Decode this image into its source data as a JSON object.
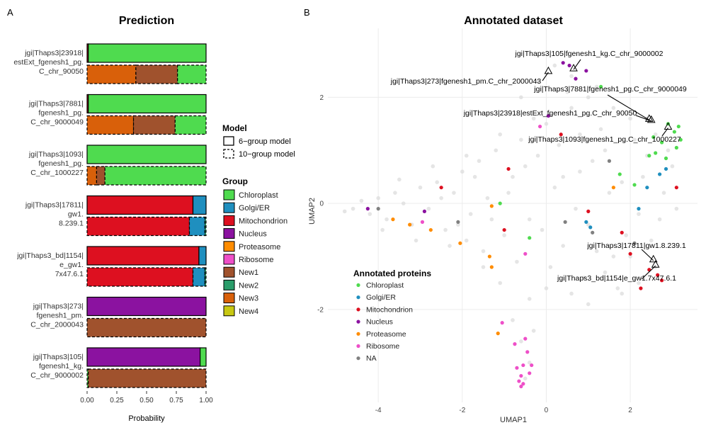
{
  "panels": {
    "a": "A",
    "b": "B"
  },
  "chart_data": [
    {
      "type": "bar",
      "orientation": "horizontal",
      "stacked": true,
      "title": "Prediction",
      "xlabel": "Probability",
      "ylabel": "",
      "xlim": [
        0,
        1
      ],
      "xticks": [
        "0.00",
        "0.25",
        "0.50",
        "0.75",
        "1.00"
      ],
      "xtick_values": [
        0,
        0.25,
        0.5,
        0.75,
        1
      ],
      "model_legend": {
        "title": "Model",
        "items": [
          "6−group model",
          "10−group model"
        ]
      },
      "group_legend": {
        "title": "Group",
        "items": [
          {
            "name": "Chloroplast",
            "color": "#4fdb4f"
          },
          {
            "name": "Golgi/ER",
            "color": "#1f8fbf"
          },
          {
            "name": "Mitochondrion",
            "color": "#dd1020"
          },
          {
            "name": "Nucleus",
            "color": "#8b12a0"
          },
          {
            "name": "Proteasome",
            "color": "#ff8c00"
          },
          {
            "name": "Ribosome",
            "color": "#ee4fc8"
          },
          {
            "name": "New1",
            "color": "#a0522d"
          },
          {
            "name": "New2",
            "color": "#2a9d6a"
          },
          {
            "name": "New3",
            "color": "#d9600a"
          },
          {
            "name": "New4",
            "color": "#c8c812"
          }
        ]
      },
      "proteins": [
        {
          "label": [
            "jgi|Thaps3|23918|",
            "estExt_fgenesh1_pg.",
            "C_chr_90050"
          ],
          "six": [
            {
              "group": "Mitochondrion",
              "value": 0.01
            },
            {
              "group": "Chloroplast",
              "value": 0.99
            }
          ],
          "ten": [
            {
              "group": "New3",
              "value": 0.41
            },
            {
              "group": "New1",
              "value": 0.35
            },
            {
              "group": "Chloroplast",
              "value": 0.24
            }
          ]
        },
        {
          "label": [
            "jgi|Thaps3|7881|",
            "fgenesh1_pg.",
            "C_chr_9000049"
          ],
          "six": [
            {
              "group": "Mitochondrion",
              "value": 0.01
            },
            {
              "group": "Chloroplast",
              "value": 0.99
            }
          ],
          "ten": [
            {
              "group": "New3",
              "value": 0.39
            },
            {
              "group": "New1",
              "value": 0.35
            },
            {
              "group": "Chloroplast",
              "value": 0.26
            }
          ]
        },
        {
          "label": [
            "jgi|Thaps3|1093|",
            "fgenesh1_pg.",
            "C_chr_1000227"
          ],
          "six": [
            {
              "group": "Chloroplast",
              "value": 1.0
            }
          ],
          "ten": [
            {
              "group": "New3",
              "value": 0.08
            },
            {
              "group": "New1",
              "value": 0.07
            },
            {
              "group": "Chloroplast",
              "value": 0.85
            }
          ]
        },
        {
          "label": [
            "jgi|Thaps3|17811|",
            "gw1.",
            "8.239.1"
          ],
          "six": [
            {
              "group": "Mitochondrion",
              "value": 0.89
            },
            {
              "group": "Golgi/ER",
              "value": 0.11
            }
          ],
          "ten": [
            {
              "group": "Mitochondrion",
              "value": 0.86
            },
            {
              "group": "Golgi/ER",
              "value": 0.13
            },
            {
              "group": "New2",
              "value": 0.01
            }
          ]
        },
        {
          "label": [
            "jgi|Thaps3_bd|1154|",
            "e_gw1.",
            "7x47.6.1"
          ],
          "six": [
            {
              "group": "Mitochondrion",
              "value": 0.94
            },
            {
              "group": "Golgi/ER",
              "value": 0.06
            }
          ],
          "ten": [
            {
              "group": "Mitochondrion",
              "value": 0.89
            },
            {
              "group": "Golgi/ER",
              "value": 0.1
            },
            {
              "group": "New2",
              "value": 0.01
            }
          ]
        },
        {
          "label": [
            "jgi|Thaps3|273|",
            "fgenesh1_pm.",
            "C_chr_2000043"
          ],
          "six": [
            {
              "group": "Nucleus",
              "value": 1.0
            }
          ],
          "ten": [
            {
              "group": "New1",
              "value": 1.0
            }
          ]
        },
        {
          "label": [
            "jgi|Thaps3|105|",
            "fgenesh1_kg.",
            "C_chr_9000002"
          ],
          "six": [
            {
              "group": "Nucleus",
              "value": 0.95
            },
            {
              "group": "Chloroplast",
              "value": 0.05
            }
          ],
          "ten": [
            {
              "group": "Chloroplast",
              "value": 0.01
            },
            {
              "group": "New1",
              "value": 0.99
            }
          ]
        }
      ]
    },
    {
      "type": "scatter",
      "title": "Annotated dataset",
      "xlabel": "UMAP1",
      "ylabel": "UMAP2",
      "xlim": [
        -5.2,
        3.6
      ],
      "ylim": [
        -3.75,
        3.3
      ],
      "xticks": [
        -4,
        -2,
        0,
        2
      ],
      "yticks": [
        -2,
        0,
        2
      ],
      "grid": true,
      "legend": {
        "title": "Annotated proteins",
        "placement": "bottom-left",
        "items": [
          {
            "name": "Chloroplast",
            "color": "#4fdb4f"
          },
          {
            "name": "Golgi/ER",
            "color": "#1f8fbf"
          },
          {
            "name": "Mitochondrion",
            "color": "#dd1020"
          },
          {
            "name": "Nucleus",
            "color": "#8b12a0"
          },
          {
            "name": "Proteasome",
            "color": "#ff8c00"
          },
          {
            "name": "Ribosome",
            "color": "#ee4fc8"
          },
          {
            "name": "NA",
            "color": "#808080"
          }
        ]
      },
      "background_color": "#dcdcdc",
      "background_points": [
        [
          -4.8,
          -0.15
        ],
        [
          -4.6,
          -0.1
        ],
        [
          -4.4,
          0.05
        ],
        [
          -4.2,
          -0.2
        ],
        [
          -4.0,
          0.1
        ],
        [
          -3.8,
          -0.3
        ],
        [
          -3.6,
          0.2
        ],
        [
          -3.4,
          0.0
        ],
        [
          -3.2,
          -0.4
        ],
        [
          -3.0,
          0.3
        ],
        [
          -2.8,
          -0.1
        ],
        [
          -2.6,
          0.4
        ],
        [
          -2.4,
          -0.5
        ],
        [
          -2.2,
          0.2
        ],
        [
          -2.0,
          0.6
        ],
        [
          -1.8,
          -0.2
        ],
        [
          -1.6,
          0.8
        ],
        [
          -1.4,
          0.1
        ],
        [
          -1.2,
          1.0
        ],
        [
          -1.0,
          -0.6
        ],
        [
          -0.8,
          0.5
        ],
        [
          -0.6,
          1.2
        ],
        [
          -0.4,
          -0.3
        ],
        [
          -0.2,
          0.9
        ],
        [
          0.0,
          1.5
        ],
        [
          0.2,
          0.3
        ],
        [
          0.4,
          -0.8
        ],
        [
          0.6,
          1.8
        ],
        [
          0.8,
          0.6
        ],
        [
          1.0,
          -0.4
        ],
        [
          1.2,
          2.2
        ],
        [
          1.4,
          1.0
        ],
        [
          1.6,
          -1.0
        ],
        [
          1.8,
          0.4
        ],
        [
          2.0,
          1.6
        ],
        [
          2.2,
          -0.2
        ],
        [
          2.4,
          0.9
        ],
        [
          2.6,
          -1.2
        ],
        [
          2.8,
          0.2
        ],
        [
          3.0,
          0.7
        ],
        [
          -3.9,
          -0.5
        ],
        [
          -3.5,
          0.45
        ],
        [
          -3.1,
          -0.7
        ],
        [
          -2.7,
          0.7
        ],
        [
          -2.3,
          -0.8
        ],
        [
          -1.9,
          0.9
        ],
        [
          -1.5,
          -0.9
        ],
        [
          -1.1,
          1.3
        ],
        [
          -0.7,
          -1.1
        ],
        [
          -0.3,
          1.6
        ],
        [
          0.1,
          -1.2
        ],
        [
          0.5,
          2.1
        ],
        [
          0.9,
          -1.4
        ],
        [
          1.3,
          1.4
        ],
        [
          1.7,
          -1.6
        ],
        [
          2.1,
          1.2
        ],
        [
          2.5,
          -0.7
        ],
        [
          2.9,
          1.0
        ],
        [
          -0.9,
          0.2
        ],
        [
          -0.5,
          0.7
        ],
        [
          0.3,
          1.1
        ],
        [
          0.7,
          -0.1
        ],
        [
          1.1,
          0.8
        ],
        [
          1.5,
          0.2
        ],
        [
          1.9,
          -0.6
        ],
        [
          2.3,
          0.5
        ],
        [
          -1.3,
          -0.3
        ],
        [
          -1.7,
          0.5
        ],
        [
          -2.1,
          -0.4
        ],
        [
          -2.5,
          0.1
        ],
        [
          -0.1,
          -0.5
        ],
        [
          0.4,
          0.5
        ],
        [
          0.8,
          1.3
        ],
        [
          1.2,
          -0.9
        ],
        [
          1.6,
          1.8
        ],
        [
          2.0,
          -1.0
        ],
        [
          2.4,
          1.6
        ],
        [
          0.2,
          2.6
        ],
        [
          0.6,
          2.4
        ],
        [
          1.0,
          2.0
        ],
        [
          -0.6,
          2.0
        ],
        [
          -0.2,
          2.3
        ],
        [
          1.4,
          -1.3
        ],
        [
          1.8,
          -1.7
        ],
        [
          2.2,
          -1.5
        ],
        [
          0.0,
          -1.6
        ],
        [
          -0.4,
          -1.8
        ],
        [
          0.6,
          -1.7
        ],
        [
          1.0,
          -1.9
        ],
        [
          -0.8,
          -2.2
        ],
        [
          -0.6,
          -2.6
        ],
        [
          -0.4,
          -3.0
        ],
        [
          -0.5,
          -3.3
        ],
        [
          -0.3,
          -2.4
        ],
        [
          -1.1,
          -1.5
        ],
        [
          -1.5,
          -1.2
        ],
        [
          -1.9,
          -0.7
        ],
        [
          2.7,
          -0.3
        ],
        [
          3.1,
          -0.1
        ],
        [
          2.6,
          1.3
        ]
      ],
      "points": [
        {
          "group": "Chloroplast",
          "x": 2.9,
          "y": 1.5
        },
        {
          "group": "Chloroplast",
          "x": 3.05,
          "y": 1.35
        },
        {
          "group": "Chloroplast",
          "x": 3.2,
          "y": 1.2
        },
        {
          "group": "Chloroplast",
          "x": 2.75,
          "y": 1.15
        },
        {
          "group": "Chloroplast",
          "x": 2.55,
          "y": 1.25
        },
        {
          "group": "Chloroplast",
          "x": 3.1,
          "y": 1.05
        },
        {
          "group": "Chloroplast",
          "x": 2.6,
          "y": 0.95
        },
        {
          "group": "Chloroplast",
          "x": 2.85,
          "y": 0.85
        },
        {
          "group": "Chloroplast",
          "x": 2.45,
          "y": 0.9
        },
        {
          "group": "Chloroplast",
          "x": 1.75,
          "y": 0.55
        },
        {
          "group": "Chloroplast",
          "x": 2.1,
          "y": 0.35
        },
        {
          "group": "Chloroplast",
          "x": 1.3,
          "y": 2.2
        },
        {
          "group": "Chloroplast",
          "x": -1.1,
          "y": 0.0
        },
        {
          "group": "Chloroplast",
          "x": -0.4,
          "y": -0.65
        },
        {
          "group": "Chloroplast",
          "x": 3.15,
          "y": 1.45
        },
        {
          "group": "Golgi/ER",
          "x": 2.4,
          "y": 0.3
        },
        {
          "group": "Golgi/ER",
          "x": 2.7,
          "y": 0.55
        },
        {
          "group": "Golgi/ER",
          "x": 2.2,
          "y": -0.1
        },
        {
          "group": "Golgi/ER",
          "x": 0.95,
          "y": -0.35
        },
        {
          "group": "Golgi/ER",
          "x": 1.05,
          "y": -0.45
        },
        {
          "group": "Golgi/ER",
          "x": 2.85,
          "y": 0.65
        },
        {
          "group": "Mitochondrion",
          "x": 2.45,
          "y": -1.25
        },
        {
          "group": "Mitochondrion",
          "x": 2.65,
          "y": -1.35
        },
        {
          "group": "Mitochondrion",
          "x": 2.0,
          "y": -0.95
        },
        {
          "group": "Mitochondrion",
          "x": 1.8,
          "y": -0.55
        },
        {
          "group": "Mitochondrion",
          "x": 1.0,
          "y": -0.15
        },
        {
          "group": "Mitochondrion",
          "x": -0.9,
          "y": 0.65
        },
        {
          "group": "Mitochondrion",
          "x": -2.5,
          "y": 0.3
        },
        {
          "group": "Mitochondrion",
          "x": 0.35,
          "y": 1.3
        },
        {
          "group": "Mitochondrion",
          "x": 3.1,
          "y": 0.3
        },
        {
          "group": "Mitochondrion",
          "x": -1.0,
          "y": -0.5
        },
        {
          "group": "Mitochondrion",
          "x": 2.25,
          "y": -1.6
        },
        {
          "group": "Mitochondrion",
          "x": 2.75,
          "y": -1.45
        },
        {
          "group": "Nucleus",
          "x": 0.4,
          "y": 2.65
        },
        {
          "group": "Nucleus",
          "x": 0.7,
          "y": 2.35
        },
        {
          "group": "Nucleus",
          "x": 0.05,
          "y": 1.65
        },
        {
          "group": "Nucleus",
          "x": 0.55,
          "y": 2.6
        },
        {
          "group": "Nucleus",
          "x": -4.25,
          "y": -0.1
        },
        {
          "group": "Nucleus",
          "x": -2.9,
          "y": -0.15
        },
        {
          "group": "Nucleus",
          "x": 0.95,
          "y": 2.5
        },
        {
          "group": "Proteasome",
          "x": -3.65,
          "y": -0.3
        },
        {
          "group": "Proteasome",
          "x": -3.25,
          "y": -0.4
        },
        {
          "group": "Proteasome",
          "x": -2.75,
          "y": -0.5
        },
        {
          "group": "Proteasome",
          "x": -2.05,
          "y": -0.75
        },
        {
          "group": "Proteasome",
          "x": -1.35,
          "y": -1.0
        },
        {
          "group": "Proteasome",
          "x": -1.3,
          "y": -1.2
        },
        {
          "group": "Proteasome",
          "x": 1.6,
          "y": 0.3
        },
        {
          "group": "Proteasome",
          "x": -1.15,
          "y": -2.45
        },
        {
          "group": "Proteasome",
          "x": -1.3,
          "y": -0.05
        },
        {
          "group": "Ribosome",
          "x": -0.5,
          "y": -2.55
        },
        {
          "group": "Ribosome",
          "x": -0.45,
          "y": -2.8
        },
        {
          "group": "Ribosome",
          "x": -0.55,
          "y": -3.05
        },
        {
          "group": "Ribosome",
          "x": -0.6,
          "y": -3.25
        },
        {
          "group": "Ribosome",
          "x": -0.65,
          "y": -3.35
        },
        {
          "group": "Ribosome",
          "x": -0.55,
          "y": -3.4
        },
        {
          "group": "Ribosome",
          "x": -0.7,
          "y": -3.1
        },
        {
          "group": "Ribosome",
          "x": -0.4,
          "y": -3.2
        },
        {
          "group": "Ribosome",
          "x": -0.75,
          "y": -2.65
        },
        {
          "group": "Ribosome",
          "x": -1.05,
          "y": -2.25
        },
        {
          "group": "Ribosome",
          "x": -0.35,
          "y": -3.05
        },
        {
          "group": "Ribosome",
          "x": -0.6,
          "y": -3.45
        },
        {
          "group": "Ribosome",
          "x": -0.5,
          "y": -0.95
        },
        {
          "group": "Ribosome",
          "x": -0.15,
          "y": 1.45
        },
        {
          "group": "Ribosome",
          "x": -2.95,
          "y": -0.35
        },
        {
          "group": "NA",
          "x": -4.0,
          "y": -0.1
        },
        {
          "group": "NA",
          "x": -2.1,
          "y": -0.35
        },
        {
          "group": "NA",
          "x": 0.45,
          "y": -0.35
        },
        {
          "group": "NA",
          "x": 1.5,
          "y": 0.8
        },
        {
          "group": "NA",
          "x": 1.1,
          "y": -0.55
        },
        {
          "group": "NA",
          "x": 2.1,
          "y": -0.75
        }
      ],
      "annotations": [
        {
          "text": "jgi|Thaps3|105|fgenesh1_kg.C_chr_9000002",
          "x": 0.65,
          "y": 2.55
        },
        {
          "text": "jgi|Thaps3|273|fgenesh1_pm.C_chr_2000043",
          "x": 0.05,
          "y": 2.5
        },
        {
          "text": "jgi|Thaps3|7881|fgenesh1_pg.C_chr_9000049",
          "x": 2.45,
          "y": 1.6
        },
        {
          "text": "jgi|Thaps3|23918|estExt_fgenesh1_pg.C_chr_90050",
          "x": 2.5,
          "y": 1.58
        },
        {
          "text": "jgi|Thaps3|1093|fgenesh1_pg.C_chr_1000227",
          "x": 2.9,
          "y": 1.45
        },
        {
          "text": "jgi|Thaps3|17811|gw1.8.239.1",
          "x": 2.55,
          "y": -1.05
        },
        {
          "text": "jgi|Thaps3_bd|1154|e_gw1.7x47.6.1",
          "x": 2.6,
          "y": -1.15
        }
      ]
    }
  ]
}
